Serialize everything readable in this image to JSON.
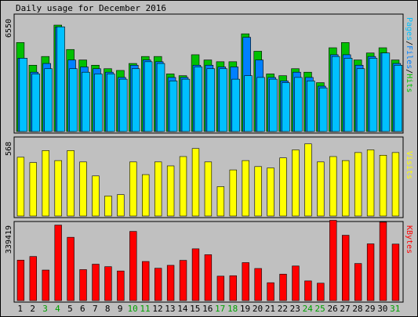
{
  "chart_data": [
    {
      "type": "bar",
      "title": "Daily usage for December 2016",
      "categories": [
        "1",
        "2",
        "3",
        "4",
        "5",
        "6",
        "7",
        "8",
        "9",
        "10",
        "11",
        "12",
        "13",
        "14",
        "15",
        "16",
        "17",
        "18",
        "19",
        "20",
        "21",
        "22",
        "23",
        "24",
        "25",
        "26",
        "27",
        "28",
        "29",
        "30",
        "31"
      ],
      "weekend_days": [
        "3",
        "4",
        "10",
        "11",
        "17",
        "18",
        "24",
        "25",
        "31"
      ],
      "ymax_label": "6550",
      "ylim": [
        0,
        6550
      ],
      "axis_legend": [
        "Pages",
        "Files",
        "Hits"
      ],
      "series": [
        {
          "name": "Hits",
          "values": [
            5100,
            3800,
            4300,
            6100,
            4700,
            4100,
            3800,
            3600,
            3500,
            3900,
            4300,
            4300,
            3300,
            3200,
            4400,
            4100,
            4000,
            4000,
            5600,
            4600,
            3300,
            3200,
            3600,
            3400,
            2800,
            4800,
            5100,
            4100,
            4500,
            4800,
            4100
          ]
        },
        {
          "name": "Files",
          "values": [
            4200,
            3400,
            3900,
            6000,
            4100,
            3700,
            3600,
            3400,
            3100,
            3800,
            4100,
            4000,
            3100,
            3100,
            3800,
            3800,
            3700,
            3700,
            5400,
            4100,
            3100,
            2900,
            3400,
            3100,
            2600,
            4400,
            4400,
            3800,
            4300,
            4500,
            3900
          ]
        },
        {
          "name": "Pages",
          "values": [
            4200,
            3300,
            3600,
            6000,
            3600,
            3400,
            3300,
            3300,
            3000,
            3600,
            4000,
            3900,
            2900,
            3000,
            3700,
            3600,
            3600,
            3000,
            3200,
            3100,
            3000,
            2800,
            3100,
            2900,
            2500,
            4300,
            4200,
            3600,
            4200,
            4500,
            3800
          ]
        }
      ],
      "colors": {
        "Hits": "#00c000",
        "Files": "#0080ff",
        "Pages": "#00c0ff"
      }
    },
    {
      "type": "bar",
      "ymax_label": "568",
      "ylim": [
        0,
        568
      ],
      "axis_legend": [
        "Visits"
      ],
      "series": [
        {
          "name": "Visits",
          "values": [
            440,
            400,
            490,
            415,
            490,
            405,
            300,
            150,
            160,
            405,
            310,
            405,
            375,
            445,
            505,
            405,
            220,
            345,
            415,
            370,
            360,
            435,
            495,
            540,
            405,
            445,
            415,
            475,
            495,
            455,
            475
          ]
        }
      ],
      "colors": {
        "Visits": "#ffff00"
      }
    },
    {
      "type": "bar",
      "ymax_label": "339419",
      "ylim": [
        0,
        339419
      ],
      "axis_legend": [
        "KBytes"
      ],
      "series": [
        {
          "name": "KBytes",
          "values": [
            179000,
            195000,
            135000,
            334000,
            280000,
            137000,
            161000,
            150000,
            131000,
            306000,
            173000,
            143000,
            156000,
            178000,
            229000,
            203000,
            108000,
            110000,
            168000,
            142000,
            79000,
            117000,
            153000,
            87000,
            77000,
            355000,
            289000,
            164000,
            251000,
            347000,
            250000
          ]
        }
      ],
      "colors": {
        "KBytes": "#ff0000"
      }
    }
  ],
  "style": {
    "frame_bg": "#c0c0c0",
    "weekday_label_color": "#000000",
    "weekend_label_color": "#00a000",
    "legend_sep_color": "#000000"
  }
}
